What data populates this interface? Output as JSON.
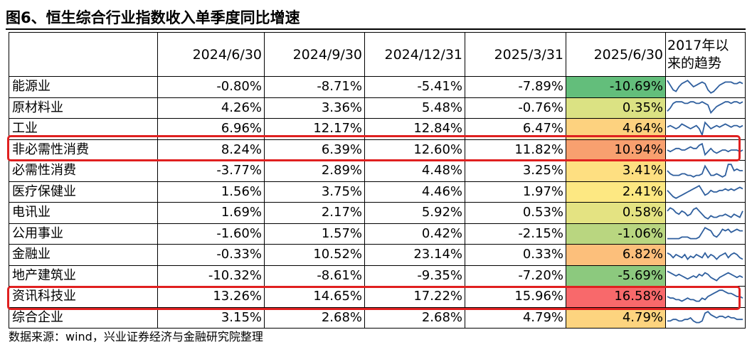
{
  "title": "图6、恒生综合行业指数收入单季度同比增速",
  "source": "数据来源：wind，兴业证券经济与金融研究院整理",
  "chart_data": {
    "type": "table",
    "columns": [
      "2024/6/30",
      "2024/9/30",
      "2024/12/31",
      "2025/3/31",
      "2025/6/30"
    ],
    "sparkline_header_line1": "2017年以",
    "sparkline_header_line2": "来的趋势",
    "highlighted_rows": [
      "非必需性消费",
      "资讯科技业"
    ],
    "rows": [
      {
        "name": "能源业",
        "values": [
          "-0.80%",
          "-8.71%",
          "-5.41%",
          "-7.89%",
          "-10.69%"
        ],
        "latest": -10.69,
        "color": "#63be7b"
      },
      {
        "name": "原材料业",
        "values": [
          "4.26%",
          "3.36%",
          "5.48%",
          "-0.76%",
          "0.35%"
        ],
        "latest": 0.35,
        "color": "#dbe283"
      },
      {
        "name": "工业",
        "values": [
          "6.96%",
          "12.17%",
          "12.84%",
          "6.47%",
          "4.64%"
        ],
        "latest": 4.64,
        "color": "#fdd27f"
      },
      {
        "name": "非必需性消费",
        "values": [
          "8.24%",
          "6.39%",
          "12.60%",
          "11.82%",
          "10.94%"
        ],
        "latest": 10.94,
        "color": "#f8a06f"
      },
      {
        "name": "必需性消费",
        "values": [
          "-3.77%",
          "2.89%",
          "4.48%",
          "3.25%",
          "3.41%"
        ],
        "latest": 3.41,
        "color": "#fedf81"
      },
      {
        "name": "医疗保健业",
        "values": [
          "1.56%",
          "3.75%",
          "4.46%",
          "1.97%",
          "2.41%"
        ],
        "latest": 2.41,
        "color": "#fde882"
      },
      {
        "name": "电讯业",
        "values": [
          "1.69%",
          "2.17%",
          "5.92%",
          "0.53%",
          "0.58%"
        ],
        "latest": 0.58,
        "color": "#e4e382"
      },
      {
        "name": "公用事业",
        "values": [
          "-1.60%",
          "1.57%",
          "0.42%",
          "-2.15%",
          "-1.06%"
        ],
        "latest": -1.06,
        "color": "#b9d680"
      },
      {
        "name": "金融业",
        "values": [
          "-0.33%",
          "10.52%",
          "23.14%",
          "0.33%",
          "6.82%"
        ],
        "latest": 6.82,
        "color": "#fcbf7b"
      },
      {
        "name": "地产建筑业",
        "values": [
          "-10.32%",
          "-8.61%",
          "-9.35%",
          "-7.20%",
          "-5.69%"
        ],
        "latest": -5.69,
        "color": "#8cc97e"
      },
      {
        "name": "资讯科技业",
        "values": [
          "13.26%",
          "14.65%",
          "17.22%",
          "15.96%",
          "16.58%"
        ],
        "latest": 16.58,
        "color": "#f8696b"
      },
      {
        "name": "综合企业",
        "values": [
          "3.15%",
          "2.68%",
          "2.68%",
          "4.79%",
          "4.79%"
        ],
        "latest": 4.79,
        "color": "#fdd47f"
      }
    ],
    "sparklines": [
      [
        9,
        6,
        3,
        2,
        5,
        7,
        8,
        9,
        7,
        5,
        6,
        7,
        8,
        7,
        3,
        1,
        2,
        4,
        6,
        7,
        8,
        8,
        8,
        7,
        7,
        8,
        7
      ],
      [
        3,
        5,
        8,
        9,
        9,
        9,
        8,
        8,
        9,
        9,
        8,
        8,
        9,
        8,
        7,
        2,
        4,
        6,
        7,
        8,
        9,
        9,
        8,
        9,
        9,
        8,
        9
      ],
      [
        6,
        7,
        6,
        5,
        6,
        8,
        7,
        6,
        5,
        6,
        7,
        5,
        1,
        9,
        7,
        5,
        6,
        7,
        6,
        7,
        8,
        7,
        6,
        7,
        7,
        6,
        7
      ],
      [
        5,
        4,
        5,
        6,
        6,
        5,
        5,
        6,
        7,
        6,
        6,
        8,
        9,
        2,
        4,
        6,
        4,
        3,
        4,
        5,
        5,
        4,
        5,
        5,
        5,
        4,
        5
      ],
      [
        5,
        3,
        2,
        2,
        2,
        3,
        3,
        2,
        2,
        1,
        2,
        2,
        3,
        8,
        5,
        2,
        2,
        3,
        2,
        1,
        2,
        9,
        9,
        5,
        6,
        5,
        5
      ],
      [
        6,
        4,
        2,
        1,
        2,
        3,
        4,
        5,
        6,
        7,
        8,
        9,
        6,
        3,
        4,
        6,
        5,
        5,
        6,
        6,
        7,
        6,
        7,
        6,
        7,
        8,
        7
      ],
      [
        6,
        8,
        7,
        5,
        4,
        6,
        5,
        3,
        4,
        7,
        8,
        6,
        4,
        2,
        1,
        3,
        2,
        2,
        3,
        3,
        4,
        3,
        2,
        4,
        3,
        2,
        6
      ],
      [
        2,
        2,
        2,
        2,
        2,
        3,
        3,
        3,
        2,
        2,
        2,
        3,
        6,
        9,
        8,
        7,
        4,
        3,
        5,
        8,
        7,
        8,
        6,
        7,
        8,
        7,
        7
      ],
      [
        6,
        5,
        3,
        5,
        4,
        3,
        5,
        2,
        4,
        3,
        5,
        4,
        3,
        6,
        3,
        5,
        4,
        2,
        4,
        5,
        6,
        3,
        5,
        6,
        5,
        3,
        2
      ],
      [
        8,
        7,
        6,
        5,
        6,
        5,
        4,
        3,
        4,
        5,
        4,
        6,
        5,
        7,
        6,
        4,
        3,
        2,
        4,
        5,
        6,
        7,
        6,
        5,
        4,
        5,
        4
      ],
      [
        5,
        4,
        4,
        3,
        3,
        2,
        3,
        4,
        3,
        3,
        2,
        2,
        4,
        3,
        5,
        6,
        7,
        8,
        9,
        9,
        8,
        7,
        7,
        6,
        5,
        5,
        4
      ],
      [
        3,
        3,
        4,
        4,
        3,
        3,
        4,
        4,
        5,
        3,
        2,
        2,
        3,
        8,
        9,
        7,
        6,
        5,
        6,
        6,
        5,
        6,
        5,
        5,
        4,
        4,
        4
      ]
    ]
  }
}
